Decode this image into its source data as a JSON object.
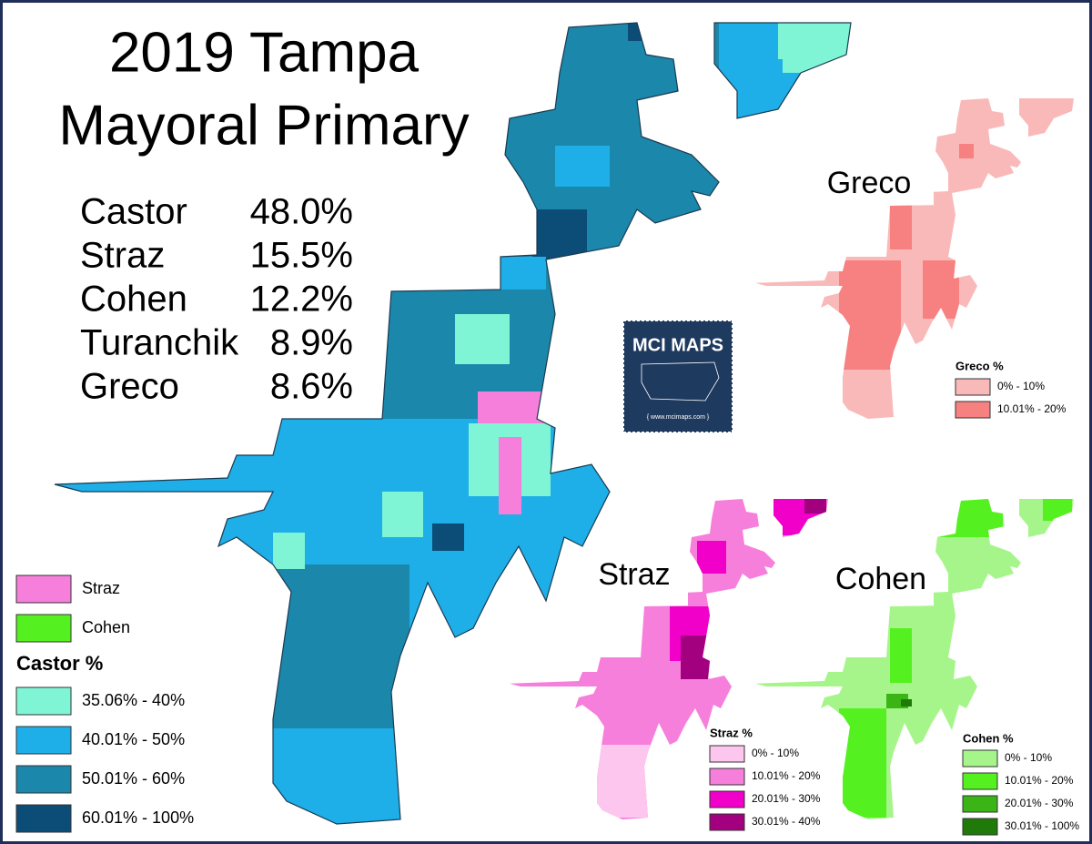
{
  "title": {
    "lines": [
      "2019 Tampa",
      "Mayoral Primary"
    ]
  },
  "results": [
    {
      "candidate": "Castor",
      "share": "48.0%"
    },
    {
      "candidate": "Straz",
      "share": "15.5%"
    },
    {
      "candidate": "Cohen",
      "share": "12.2%"
    },
    {
      "candidate": "Turanchik",
      "share": "8.9%"
    },
    {
      "candidate": "Greco",
      "share": "8.6%"
    }
  ],
  "logo": {
    "name": "MCI MAPS",
    "url": "{ www.mcimaps.com }"
  },
  "main_legend": {
    "winners": [
      {
        "label": "Straz",
        "color": "#f77fdc"
      },
      {
        "label": "Cohen",
        "color": "#55f020"
      }
    ],
    "title": "Castor %",
    "items": [
      {
        "label": "35.06% - 40%",
        "color": "#7ff5d6"
      },
      {
        "label": "40.01% - 50%",
        "color": "#1eaee8"
      },
      {
        "label": "50.01% - 60%",
        "color": "#1b87ab"
      },
      {
        "label": "60.01% - 100%",
        "color": "#0c4d78"
      }
    ]
  },
  "greco_map": {
    "title": "Greco",
    "legend_title": "Greco %",
    "items": [
      {
        "label": "0% - 10%",
        "color": "#f9b9b9"
      },
      {
        "label": "10.01% - 20%",
        "color": "#f78080"
      }
    ]
  },
  "straz_map": {
    "title": "Straz",
    "legend_title": "Straz %",
    "items": [
      {
        "label": "0% - 10%",
        "color": "#fcc6ee"
      },
      {
        "label": "10.01% - 20%",
        "color": "#f77fdc"
      },
      {
        "label": "20.01% - 30%",
        "color": "#f000c8"
      },
      {
        "label": "30.01% - 40%",
        "color": "#a3007f"
      }
    ]
  },
  "cohen_map": {
    "title": "Cohen",
    "legend_title": "Cohen %",
    "items": [
      {
        "label": "0% - 10%",
        "color": "#a6f58a"
      },
      {
        "label": "10.01% - 20%",
        "color": "#55f020"
      },
      {
        "label": "20.01% - 30%",
        "color": "#3ab515"
      },
      {
        "label": "30.01% - 100%",
        "color": "#1f7a0a"
      }
    ]
  }
}
